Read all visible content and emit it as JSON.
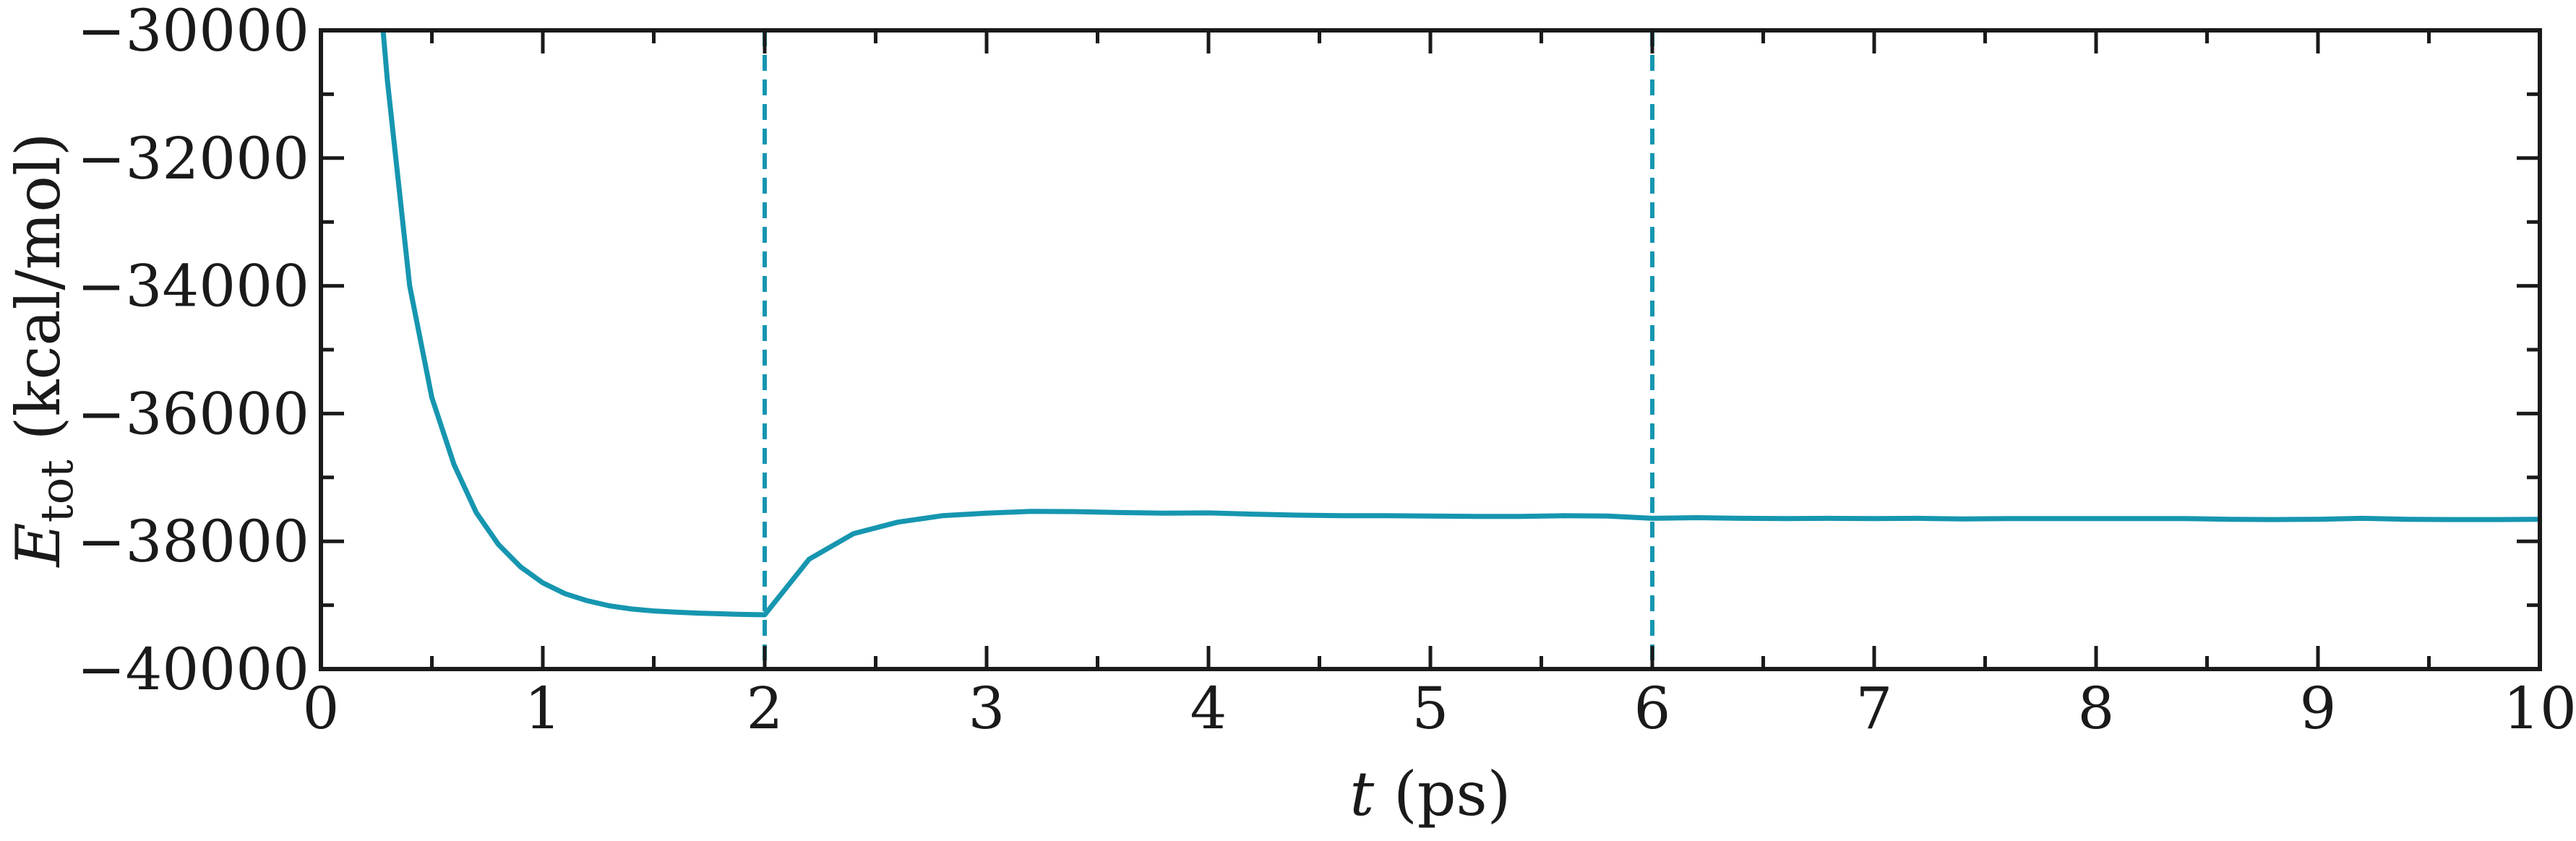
{
  "chart_data": {
    "type": "line",
    "xlabel": "t (ps)",
    "ylabel": "E_tot (kcal/mol)",
    "xlim": [
      0,
      10
    ],
    "ylim": [
      -40000,
      -30000
    ],
    "xticks": [
      0,
      1,
      2,
      3,
      4,
      5,
      6,
      7,
      8,
      9,
      10
    ],
    "yticks": [
      -40000,
      -38000,
      -36000,
      -34000,
      -32000,
      -30000
    ],
    "xtick_labels": [
      "0",
      "1",
      "2",
      "3",
      "4",
      "5",
      "6",
      "7",
      "8",
      "9",
      "10"
    ],
    "ytick_labels": [
      "−40000",
      "−38000",
      "−36000",
      "−34000",
      "−32000",
      "−30000"
    ],
    "grid": false,
    "series": [
      {
        "color": "#1696b0",
        "x": [
          0.28,
          0.3,
          0.4,
          0.5,
          0.6,
          0.7,
          0.8,
          0.9,
          1.0,
          1.1,
          1.2,
          1.3,
          1.4,
          1.5,
          1.6,
          1.7,
          1.8,
          1.9,
          2.0,
          2.2,
          2.4,
          2.6,
          2.8,
          3.0,
          3.2,
          3.4,
          3.6,
          3.8,
          4.0,
          4.2,
          4.4,
          4.6,
          4.8,
          5.0,
          5.2,
          5.4,
          5.6,
          5.8,
          6.0,
          6.2,
          6.4,
          6.6,
          6.8,
          7.0,
          7.2,
          7.4,
          7.6,
          7.8,
          8.0,
          8.2,
          8.4,
          8.6,
          8.8,
          9.0,
          9.2,
          9.4,
          9.6,
          9.8,
          10.0
        ],
        "y": [
          -30000,
          -30800,
          -34000,
          -35750,
          -36800,
          -37550,
          -38050,
          -38400,
          -38650,
          -38820,
          -38930,
          -39010,
          -39060,
          -39090,
          -39110,
          -39125,
          -39135,
          -39145,
          -39150,
          -38280,
          -37880,
          -37700,
          -37600,
          -37560,
          -37530,
          -37535,
          -37550,
          -37560,
          -37555,
          -37575,
          -37590,
          -37600,
          -37600,
          -37605,
          -37610,
          -37610,
          -37600,
          -37605,
          -37640,
          -37630,
          -37640,
          -37645,
          -37640,
          -37645,
          -37640,
          -37650,
          -37645,
          -37645,
          -37645,
          -37645,
          -37645,
          -37655,
          -37660,
          -37655,
          -37640,
          -37655,
          -37660,
          -37660,
          -37655
        ]
      }
    ],
    "vlines": [
      {
        "x": 2,
        "color": "#1696b0",
        "style": "dashed"
      },
      {
        "x": 6,
        "color": "#1696b0",
        "style": "dashed"
      }
    ]
  }
}
